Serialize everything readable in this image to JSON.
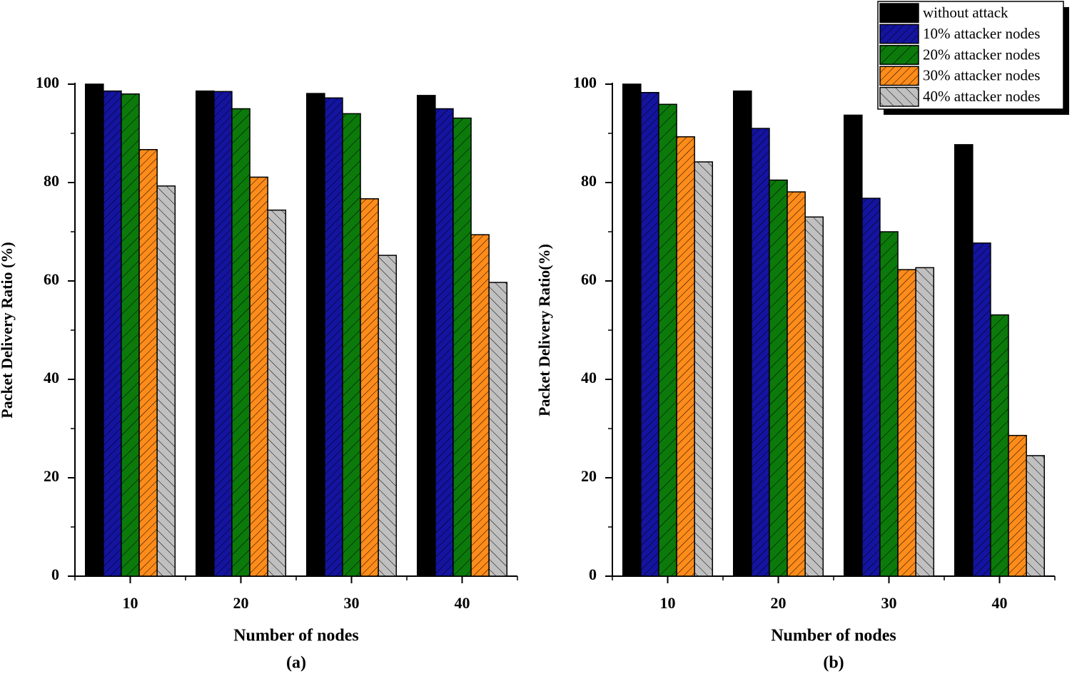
{
  "chart_data": [
    {
      "type": "bar",
      "caption": "(a)",
      "x_label": "Number of nodes",
      "y_label": "Packet Delivery Ratio (%)",
      "categories": [
        "10",
        "20",
        "30",
        "40"
      ],
      "series": [
        {
          "color": "#000000",
          "values": [
            100,
            98.6,
            98.1,
            97.7
          ]
        },
        {
          "color": "#1414a0",
          "values": [
            98.6,
            98.5,
            97.2,
            95
          ]
        },
        {
          "color": "#0b7a0b",
          "values": [
            98,
            95,
            94,
            93.1
          ]
        },
        {
          "color": "#ff8c1a",
          "values": [
            86.7,
            81.1,
            76.7,
            69.4
          ]
        },
        {
          "color": "#c0c0c0",
          "values": [
            79.3,
            74.4,
            65.2,
            59.7
          ]
        }
      ],
      "ylim": [
        0,
        100
      ],
      "yticks": [
        0,
        20,
        40,
        60,
        80,
        100
      ]
    },
    {
      "type": "bar",
      "caption": "(b)",
      "x_label": "Number of nodes",
      "y_label": "Packet Delivery Ratio(%)",
      "categories": [
        "10",
        "20",
        "30",
        "40"
      ],
      "series": [
        {
          "name": "without attack",
          "color": "#000000",
          "values": [
            100,
            98.6,
            93.7,
            87.7
          ]
        },
        {
          "name": "10% attacker nodes",
          "color": "#1414a0",
          "values": [
            98.3,
            91,
            76.8,
            67.7
          ]
        },
        {
          "name": "20% attacker nodes",
          "color": "#0b7a0b",
          "values": [
            95.9,
            80.5,
            70,
            53.1
          ]
        },
        {
          "name": "30% attacker nodes",
          "color": "#ff8c1a",
          "values": [
            89.3,
            78.1,
            62.3,
            28.6
          ]
        },
        {
          "name": "40% attacker nodes",
          "color": "#c0c0c0",
          "values": [
            84.2,
            73,
            62.7,
            24.5
          ]
        }
      ],
      "ylim": [
        0,
        100
      ],
      "yticks": [
        0,
        20,
        40,
        60,
        80,
        100
      ],
      "legend": "upper right"
    }
  ]
}
